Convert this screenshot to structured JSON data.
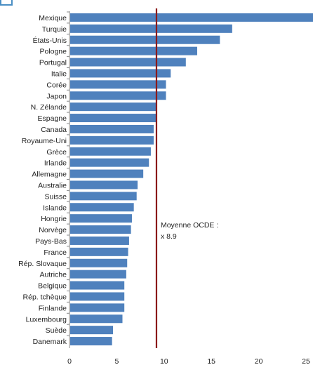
{
  "chart_data": {
    "type": "bar",
    "orientation": "horizontal",
    "categories": [
      "Mexique",
      "Turquie",
      "États-Unis",
      "Pologne",
      "Portugal",
      "Italie",
      "Corée",
      "Japon",
      "N. Zélande",
      "Espagne",
      "Canada",
      "Royaume-Uni",
      "Grèce",
      "Irlande",
      "Allemagne",
      "Australie",
      "Suisse",
      "Islande",
      "Hongrie",
      "Norvège",
      "Pays-Bas",
      "France",
      "Rép. Slovaque",
      "Autriche",
      "Belgique",
      "Rép. tchèque",
      "Finlande",
      "Luxembourg",
      "Suède",
      "Danemark"
    ],
    "values": [
      26.0,
      17.2,
      15.9,
      13.5,
      12.3,
      10.7,
      10.2,
      10.2,
      9.2,
      9.2,
      8.9,
      8.9,
      8.6,
      8.4,
      7.8,
      7.2,
      7.1,
      6.8,
      6.6,
      6.5,
      6.3,
      6.2,
      6.1,
      6.0,
      5.8,
      5.8,
      5.8,
      5.6,
      4.6,
      4.5
    ],
    "xlim": [
      0,
      25
    ],
    "xticks": [
      0,
      5,
      10,
      15,
      20,
      25
    ],
    "bar_color": "#4f81bd",
    "reference_line": {
      "value": 8.9,
      "color": "#8b1a1a"
    },
    "annotation": {
      "line1": "Moyenne OCDE :",
      "line2": "x 8.9"
    },
    "title": "",
    "xlabel": "",
    "ylabel": ""
  }
}
